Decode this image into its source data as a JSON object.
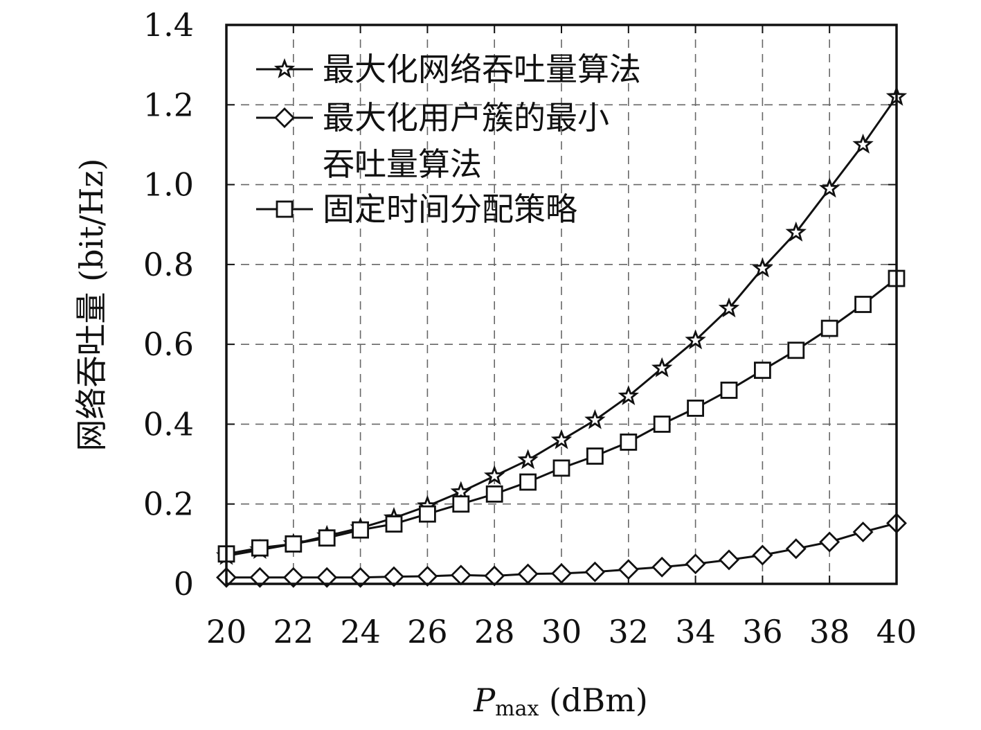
{
  "chart_data": {
    "type": "line",
    "xlabel": {
      "main": "P",
      "sub": "max",
      "unit": " (dBm)"
    },
    "ylabel": "网络吞吐量 (bit/Hz)",
    "xlim": [
      20,
      40
    ],
    "ylim": [
      0,
      1.4
    ],
    "xticks": [
      20,
      22,
      24,
      26,
      28,
      30,
      32,
      34,
      36,
      38,
      40
    ],
    "xtick_labels": [
      "20",
      "22",
      "24",
      "26",
      "28",
      "30",
      "32",
      "34",
      "36",
      "38",
      "40"
    ],
    "yticks": [
      0,
      0.2,
      0.4,
      0.6,
      0.8,
      1.0,
      1.2,
      1.4
    ],
    "ytick_labels": [
      "0",
      "0.2",
      "0.4",
      "0.6",
      "0.8",
      "1.0",
      "1.2",
      "1.4"
    ],
    "grid": true,
    "legend_position": "top-left",
    "x": [
      20,
      21,
      22,
      23,
      24,
      25,
      26,
      27,
      28,
      29,
      30,
      31,
      32,
      33,
      34,
      35,
      36,
      37,
      38,
      39,
      40
    ],
    "series": [
      {
        "name": "最大化网络吞吐量算法",
        "legend_lines": [
          "最大化网络吞吐量算法"
        ],
        "marker": "star",
        "values": [
          0.07,
          0.085,
          0.1,
          0.12,
          0.14,
          0.165,
          0.195,
          0.23,
          0.27,
          0.31,
          0.36,
          0.41,
          0.47,
          0.54,
          0.61,
          0.69,
          0.79,
          0.88,
          0.99,
          1.1,
          1.22
        ]
      },
      {
        "name": "最大化用户簇的最小吞吐量算法",
        "legend_lines": [
          "最大化用户簇的最小",
          "吞吐量算法"
        ],
        "marker": "diamond",
        "values": [
          0.016,
          0.016,
          0.016,
          0.016,
          0.016,
          0.018,
          0.019,
          0.022,
          0.02,
          0.025,
          0.026,
          0.03,
          0.036,
          0.042,
          0.05,
          0.06,
          0.072,
          0.088,
          0.105,
          0.13,
          0.152
        ]
      },
      {
        "name": "固定时间分配策略",
        "legend_lines": [
          "固定时间分配策略"
        ],
        "marker": "square",
        "values": [
          0.075,
          0.09,
          0.1,
          0.115,
          0.135,
          0.15,
          0.175,
          0.2,
          0.225,
          0.255,
          0.29,
          0.32,
          0.355,
          0.4,
          0.44,
          0.485,
          0.535,
          0.585,
          0.64,
          0.7,
          0.765
        ]
      }
    ]
  }
}
